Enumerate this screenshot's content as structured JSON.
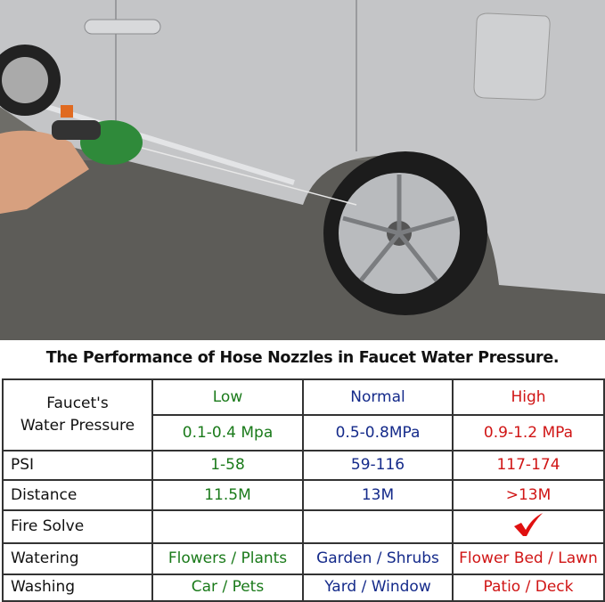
{
  "title": "The Performance of Hose Nozzles in Faucet Water Pressure.",
  "colors": {
    "low": "#1a7a1a",
    "normal": "#142a8a",
    "high": "#d01515"
  },
  "table": {
    "header_label": [
      "Faucet's",
      "Water Pressure"
    ],
    "levels": [
      "Low",
      "Normal",
      "High"
    ],
    "pressure": [
      "0.1-0.4 Mpa",
      "0.5-0.8MPa",
      "0.9-1.2 MPa"
    ],
    "rows": [
      {
        "label": "PSI",
        "values": [
          "1-58",
          "59-116",
          "117-174"
        ]
      },
      {
        "label": "Distance",
        "values": [
          "11.5M",
          "13M",
          ">13M"
        ]
      },
      {
        "label": "Fire Solve",
        "values": [
          "",
          "",
          ""
        ],
        "check_icon_column": "High"
      },
      {
        "label": "Watering",
        "values": [
          "Flowers / Plants",
          "Garden / Shrubs",
          "Flower Bed / Lawn"
        ]
      },
      {
        "label": "Washing",
        "values": [
          "Car / Pets",
          "Yard / Window",
          "Patio / Deck"
        ]
      }
    ]
  }
}
